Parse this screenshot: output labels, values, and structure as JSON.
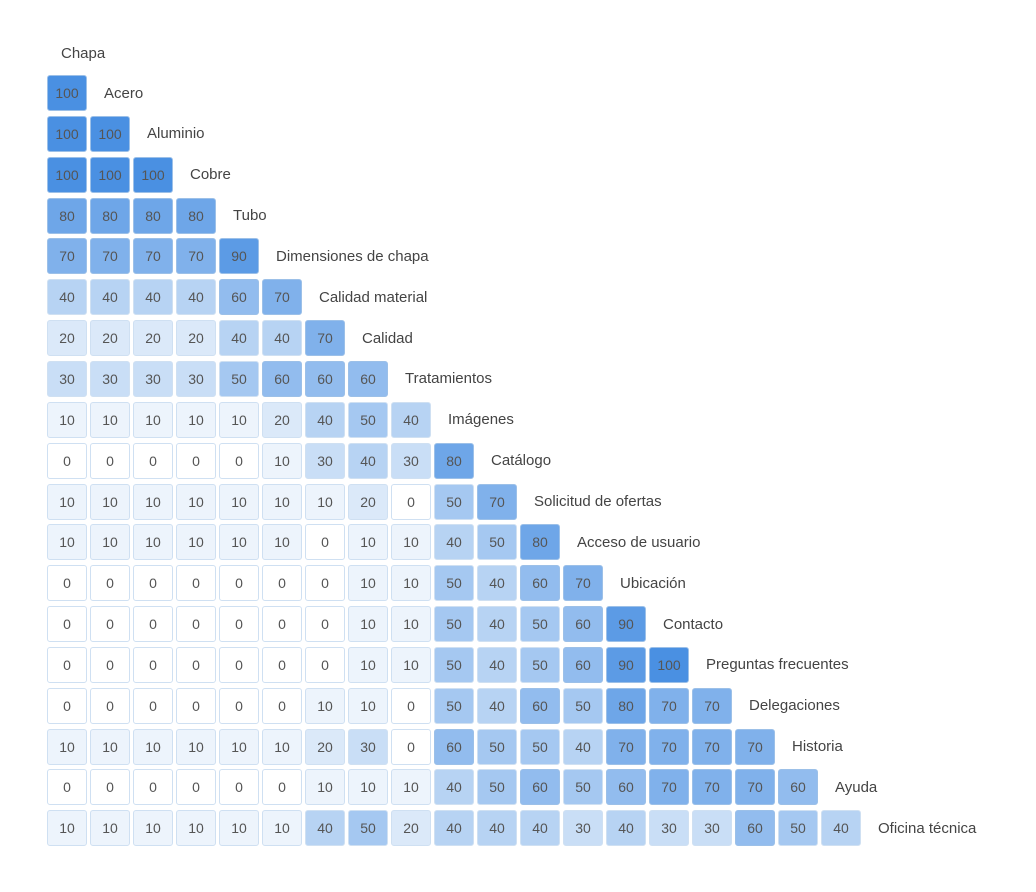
{
  "chart_data": {
    "type": "heatmap",
    "top_label": "Chapa",
    "rows": [
      {
        "label": "Acero",
        "values": [
          100
        ]
      },
      {
        "label": "Aluminio",
        "values": [
          100,
          100
        ]
      },
      {
        "label": "Cobre",
        "values": [
          100,
          100,
          100
        ]
      },
      {
        "label": "Tubo",
        "values": [
          80,
          80,
          80,
          80
        ]
      },
      {
        "label": "Dimensiones de chapa",
        "values": [
          70,
          70,
          70,
          70,
          90
        ]
      },
      {
        "label": "Calidad material",
        "values": [
          40,
          40,
          40,
          40,
          60,
          70
        ]
      },
      {
        "label": "Calidad",
        "values": [
          20,
          20,
          20,
          20,
          40,
          40,
          70
        ]
      },
      {
        "label": "Tratamientos",
        "values": [
          30,
          30,
          30,
          30,
          50,
          60,
          60,
          60
        ]
      },
      {
        "label": "Imágenes",
        "values": [
          10,
          10,
          10,
          10,
          10,
          20,
          40,
          50,
          40
        ]
      },
      {
        "label": "Catálogo",
        "values": [
          0,
          0,
          0,
          0,
          0,
          10,
          30,
          40,
          30,
          80
        ]
      },
      {
        "label": "Solicitud de ofertas",
        "values": [
          10,
          10,
          10,
          10,
          10,
          10,
          10,
          20,
          0,
          50,
          70
        ]
      },
      {
        "label": "Acceso de usuario",
        "values": [
          10,
          10,
          10,
          10,
          10,
          10,
          0,
          10,
          10,
          40,
          50,
          80
        ]
      },
      {
        "label": "Ubicación",
        "values": [
          0,
          0,
          0,
          0,
          0,
          0,
          0,
          10,
          10,
          50,
          40,
          60,
          70
        ]
      },
      {
        "label": "Contacto",
        "values": [
          0,
          0,
          0,
          0,
          0,
          0,
          0,
          10,
          10,
          50,
          40,
          50,
          60,
          90
        ]
      },
      {
        "label": "Preguntas frecuentes",
        "values": [
          0,
          0,
          0,
          0,
          0,
          0,
          0,
          10,
          10,
          50,
          40,
          50,
          60,
          90,
          100
        ]
      },
      {
        "label": "Delegaciones",
        "values": [
          0,
          0,
          0,
          0,
          0,
          0,
          10,
          10,
          0,
          50,
          40,
          60,
          50,
          80,
          70,
          70
        ]
      },
      {
        "label": "Historia",
        "values": [
          10,
          10,
          10,
          10,
          10,
          10,
          20,
          30,
          0,
          60,
          50,
          50,
          40,
          70,
          70,
          70,
          70
        ]
      },
      {
        "label": "Ayuda",
        "values": [
          0,
          0,
          0,
          0,
          0,
          0,
          10,
          10,
          10,
          40,
          50,
          60,
          50,
          60,
          70,
          70,
          70,
          60
        ]
      },
      {
        "label": "Oficina técnica",
        "values": [
          10,
          10,
          10,
          10,
          10,
          10,
          40,
          50,
          20,
          40,
          40,
          40,
          30,
          40,
          30,
          30,
          60,
          50,
          40
        ]
      }
    ],
    "value_range": [
      0,
      100
    ],
    "color_low": "#ffffff",
    "color_high": "#4a90e2"
  }
}
